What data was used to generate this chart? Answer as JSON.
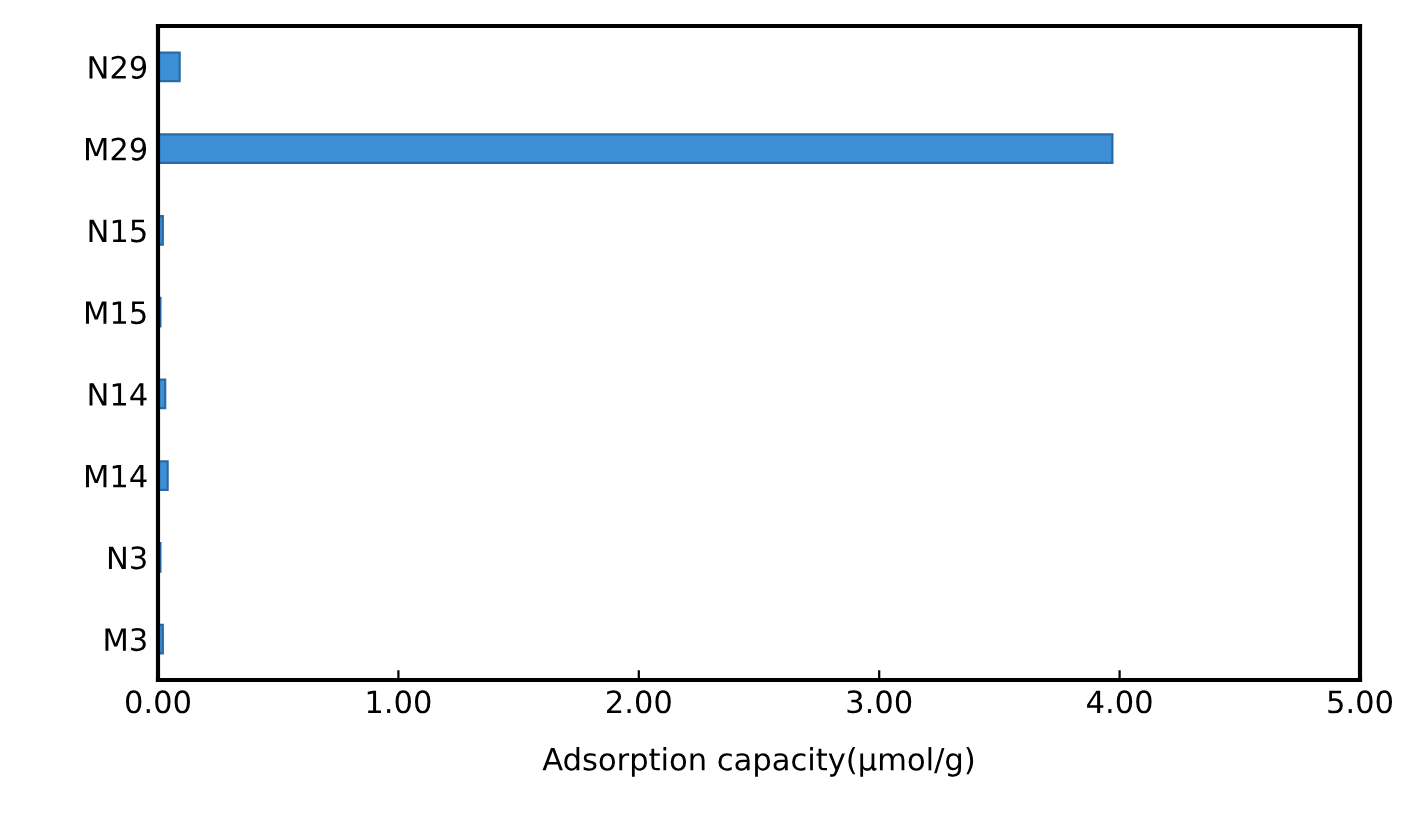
{
  "chart_data": {
    "type": "bar",
    "orientation": "horizontal",
    "xlabel": "Adsorption capacity(μmol/g)",
    "categories": [
      "N29",
      "M29",
      "N15",
      "M15",
      "N14",
      "M14",
      "N3",
      "M3"
    ],
    "values": [
      0.09,
      3.97,
      0.02,
      0.01,
      0.03,
      0.04,
      0.01,
      0.02
    ],
    "color": "#3d8fd6",
    "xlim": [
      0,
      5
    ],
    "xticks": [
      {
        "value": 0,
        "label": "0.00"
      },
      {
        "value": 1,
        "label": "1.00"
      },
      {
        "value": 2,
        "label": "2.00"
      },
      {
        "value": 3,
        "label": "3.00"
      },
      {
        "value": 4,
        "label": "4.00"
      },
      {
        "value": 5,
        "label": "5.00"
      }
    ],
    "grid": false,
    "legend": false
  }
}
